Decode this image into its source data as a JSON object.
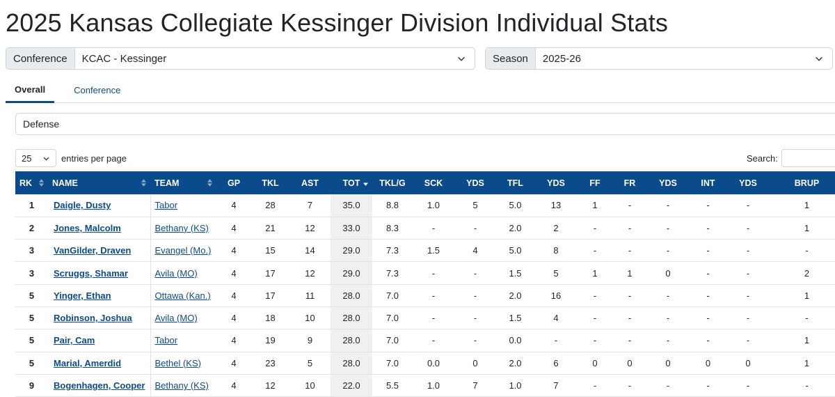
{
  "page": {
    "title": "2025 Kansas Collegiate Kessinger Division Individual Stats"
  },
  "filters": {
    "conference": {
      "label": "Conference",
      "value": "KCAC - Kessinger"
    },
    "season": {
      "label": "Season",
      "value": "2025-26"
    }
  },
  "tabs": [
    {
      "label": "Overall",
      "active": true
    },
    {
      "label": "Conference",
      "active": false
    }
  ],
  "category": {
    "value": "Defense"
  },
  "entries": {
    "value": "25",
    "label": "entries per page"
  },
  "search": {
    "label": "Search:"
  },
  "colors": {
    "header_bg": "#0b4b8c",
    "link": "#0b4b8c",
    "sorted_col_bg": "#f0f0f0"
  },
  "table": {
    "columns": [
      "RK",
      "NAME",
      "TEAM",
      "GP",
      "TKL",
      "AST",
      "TOT",
      "TKL/G",
      "SCK",
      "YDS",
      "TFL",
      "YDS",
      "FF",
      "FR",
      "YDS",
      "INT",
      "YDS",
      "BRUP"
    ],
    "rows": [
      [
        "1",
        "Daigle, Dusty",
        "Tabor",
        "4",
        "28",
        "7",
        "35.0",
        "8.8",
        "1.0",
        "5",
        "5.0",
        "13",
        "1",
        "-",
        "-",
        "-",
        "-",
        "1"
      ],
      [
        "2",
        "Jones, Malcolm",
        "Bethany (KS)",
        "4",
        "21",
        "12",
        "33.0",
        "8.3",
        "-",
        "-",
        "2.0",
        "2",
        "-",
        "-",
        "-",
        "-",
        "-",
        "1"
      ],
      [
        "3",
        "VanGilder, Draven",
        "Evangel (Mo.)",
        "4",
        "15",
        "14",
        "29.0",
        "7.3",
        "1.5",
        "4",
        "5.0",
        "8",
        "-",
        "-",
        "-",
        "-",
        "-",
        "-"
      ],
      [
        "3",
        "Scruggs, Shamar",
        "Avila (MO)",
        "4",
        "17",
        "12",
        "29.0",
        "7.3",
        "-",
        "-",
        "1.5",
        "5",
        "1",
        "1",
        "0",
        "-",
        "-",
        "2"
      ],
      [
        "5",
        "Yinger, Ethan",
        "Ottawa (Kan.)",
        "4",
        "17",
        "11",
        "28.0",
        "7.0",
        "-",
        "-",
        "2.0",
        "16",
        "-",
        "-",
        "-",
        "-",
        "-",
        "1"
      ],
      [
        "5",
        "Robinson, Joshua",
        "Avila (MO)",
        "4",
        "18",
        "10",
        "28.0",
        "7.0",
        "-",
        "-",
        "1.5",
        "4",
        "-",
        "-",
        "-",
        "-",
        "-",
        "-"
      ],
      [
        "5",
        "Pair, Cam",
        "Tabor",
        "4",
        "19",
        "9",
        "28.0",
        "7.0",
        "-",
        "-",
        "0.0",
        "-",
        "-",
        "-",
        "-",
        "-",
        "-",
        "1"
      ],
      [
        "5",
        "Marial, Amerdid",
        "Bethel (KS)",
        "4",
        "23",
        "5",
        "28.0",
        "7.0",
        "0.0",
        "0",
        "2.0",
        "6",
        "0",
        "0",
        "0",
        "0",
        "0",
        "1"
      ],
      [
        "9",
        "Bogenhagen, Cooper",
        "Bethany (KS)",
        "4",
        "12",
        "10",
        "22.0",
        "5.5",
        "1.0",
        "7",
        "1.0",
        "7",
        "-",
        "-",
        "-",
        "-",
        "-",
        "-"
      ]
    ]
  }
}
